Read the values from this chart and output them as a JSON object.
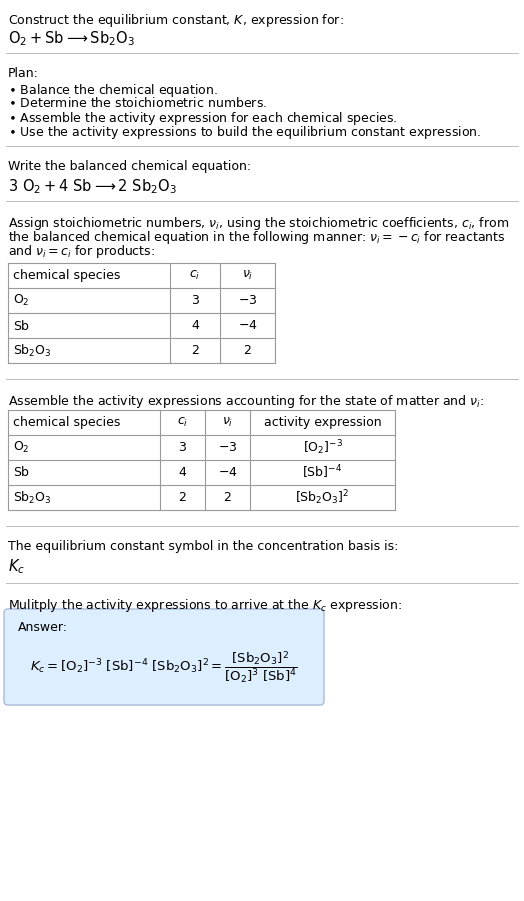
{
  "title": "Construct the equilibrium constant, $K$, expression for:",
  "reaction_unbalanced": "$\\mathrm{O_2 + Sb \\longrightarrow Sb_2O_3}$",
  "plan_header": "Plan:",
  "plan_steps": [
    "$\\bullet$ Balance the chemical equation.",
    "$\\bullet$ Determine the stoichiometric numbers.",
    "$\\bullet$ Assemble the activity expression for each chemical species.",
    "$\\bullet$ Use the activity expressions to build the equilibrium constant expression."
  ],
  "balanced_header": "Write the balanced chemical equation:",
  "reaction_balanced": "$\\mathrm{3\\ O_2 + 4\\ Sb \\longrightarrow 2\\ Sb_2O_3}$",
  "stoich_lines": [
    "Assign stoichiometric numbers, $\\nu_i$, using the stoichiometric coefficients, $c_i$, from",
    "the balanced chemical equation in the following manner: $\\nu_i = -c_i$ for reactants",
    "and $\\nu_i = c_i$ for products:"
  ],
  "table1_headers": [
    "chemical species",
    "$c_i$",
    "$\\nu_i$"
  ],
  "table1_rows": [
    [
      "$\\mathrm{O_2}$",
      "3",
      "$-3$"
    ],
    [
      "$\\mathrm{Sb}$",
      "4",
      "$-4$"
    ],
    [
      "$\\mathrm{Sb_2O_3}$",
      "2",
      "2"
    ]
  ],
  "activity_intro": "Assemble the activity expressions accounting for the state of matter and $\\nu_i$:",
  "table2_headers": [
    "chemical species",
    "$c_i$",
    "$\\nu_i$",
    "activity expression"
  ],
  "table2_rows": [
    [
      "$\\mathrm{O_2}$",
      "3",
      "$-3$",
      "$[\\mathrm{O_2}]^{-3}$"
    ],
    [
      "$\\mathrm{Sb}$",
      "4",
      "$-4$",
      "$[\\mathrm{Sb}]^{-4}$"
    ],
    [
      "$\\mathrm{Sb_2O_3}$",
      "2",
      "2",
      "$[\\mathrm{Sb_2O_3}]^2$"
    ]
  ],
  "kc_intro": "The equilibrium constant symbol in the concentration basis is:",
  "kc_symbol": "$K_c$",
  "multiply_intro": "Mulitply the activity expressions to arrive at the $K_c$ expression:",
  "answer_label": "Answer:",
  "answer_bg": "#ddeeff",
  "answer_border": "#aabbdd",
  "bg_color": "#ffffff",
  "text_color": "#000000",
  "table_line_color": "#999999",
  "font_size": 9.0,
  "divider_color": "#bbbbbb"
}
